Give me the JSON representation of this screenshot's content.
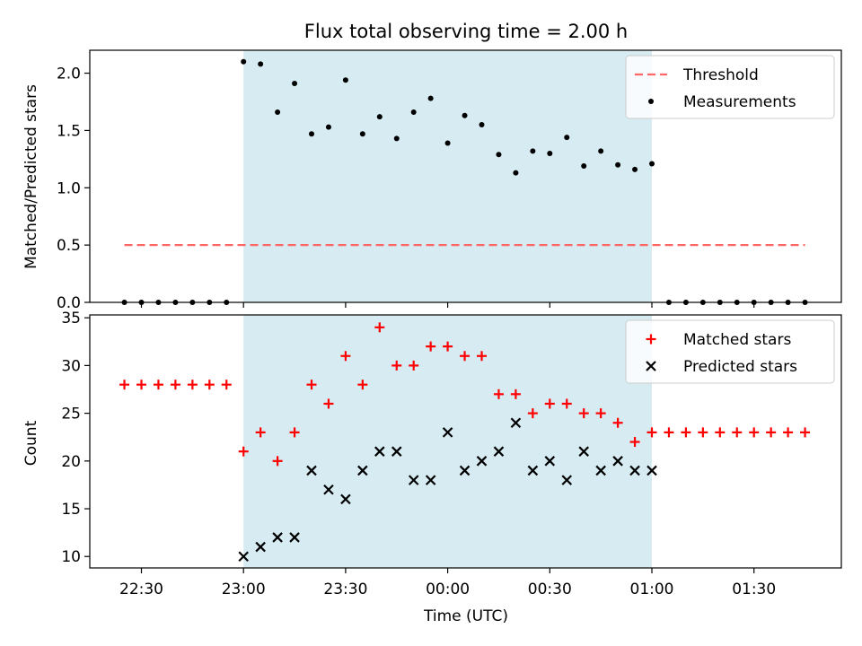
{
  "figure": {
    "title": "Flux total observing time = 2.00 h",
    "xlabel": "Time (UTC)",
    "x_ticks": [
      "22:30",
      "23:00",
      "23:30",
      "00:00",
      "00:30",
      "01:00",
      "01:30"
    ],
    "shaded_span": {
      "start": "23:00",
      "end": "01:00",
      "color": "#add8e6"
    }
  },
  "chart_data": [
    {
      "type": "scatter",
      "ylabel": "Matched/Predicted stars",
      "ylim": [
        0,
        2.2
      ],
      "y_ticks": [
        "0.0",
        "0.5",
        "1.0",
        "1.5",
        "2.0"
      ],
      "legend_position": "top-right",
      "grid": false,
      "threshold": {
        "name": "Threshold",
        "value": 0.5,
        "x_start": "22:25",
        "x_end": "01:45",
        "color": "#ff6666"
      },
      "series": [
        {
          "name": "Measurements",
          "color": "#000000",
          "marker": "dot",
          "points": [
            [
              "22:25",
              0
            ],
            [
              "22:30",
              0
            ],
            [
              "22:35",
              0
            ],
            [
              "22:40",
              0
            ],
            [
              "22:45",
              0
            ],
            [
              "22:50",
              0
            ],
            [
              "22:55",
              0
            ],
            [
              "23:00",
              2.1
            ],
            [
              "23:05",
              2.08
            ],
            [
              "23:10",
              1.66
            ],
            [
              "23:15",
              1.91
            ],
            [
              "23:20",
              1.47
            ],
            [
              "23:25",
              1.53
            ],
            [
              "23:30",
              1.94
            ],
            [
              "23:35",
              1.47
            ],
            [
              "23:40",
              1.62
            ],
            [
              "23:45",
              1.43
            ],
            [
              "23:50",
              1.66
            ],
            [
              "23:55",
              1.78
            ],
            [
              "00:00",
              1.39
            ],
            [
              "00:05",
              1.63
            ],
            [
              "00:10",
              1.55
            ],
            [
              "00:15",
              1.29
            ],
            [
              "00:20",
              1.13
            ],
            [
              "00:25",
              1.32
            ],
            [
              "00:30",
              1.3
            ],
            [
              "00:35",
              1.44
            ],
            [
              "00:40",
              1.19
            ],
            [
              "00:45",
              1.32
            ],
            [
              "00:50",
              1.2
            ],
            [
              "00:55",
              1.16
            ],
            [
              "01:00",
              1.21
            ],
            [
              "01:05",
              0
            ],
            [
              "01:10",
              0
            ],
            [
              "01:15",
              0
            ],
            [
              "01:20",
              0
            ],
            [
              "01:25",
              0
            ],
            [
              "01:30",
              0
            ],
            [
              "01:35",
              0
            ],
            [
              "01:40",
              0
            ],
            [
              "01:45",
              0
            ]
          ]
        }
      ]
    },
    {
      "type": "scatter",
      "ylabel": "Count",
      "ylim": [
        8.8,
        35.3
      ],
      "y_ticks": [
        "10",
        "15",
        "20",
        "25",
        "30",
        "35"
      ],
      "legend_position": "top-right",
      "grid": false,
      "series": [
        {
          "name": "Matched stars",
          "color": "#ff0000",
          "marker": "plus",
          "points": [
            [
              "22:25",
              28
            ],
            [
              "22:30",
              28
            ],
            [
              "22:35",
              28
            ],
            [
              "22:40",
              28
            ],
            [
              "22:45",
              28
            ],
            [
              "22:50",
              28
            ],
            [
              "22:55",
              28
            ],
            [
              "23:00",
              21
            ],
            [
              "23:05",
              23
            ],
            [
              "23:10",
              20
            ],
            [
              "23:15",
              23
            ],
            [
              "23:20",
              28
            ],
            [
              "23:25",
              26
            ],
            [
              "23:30",
              31
            ],
            [
              "23:35",
              28
            ],
            [
              "23:40",
              34
            ],
            [
              "23:45",
              30
            ],
            [
              "23:50",
              30
            ],
            [
              "23:55",
              32
            ],
            [
              "00:00",
              32
            ],
            [
              "00:05",
              31
            ],
            [
              "00:10",
              31
            ],
            [
              "00:15",
              27
            ],
            [
              "00:20",
              27
            ],
            [
              "00:25",
              25
            ],
            [
              "00:30",
              26
            ],
            [
              "00:35",
              26
            ],
            [
              "00:40",
              25
            ],
            [
              "00:45",
              25
            ],
            [
              "00:50",
              24
            ],
            [
              "00:55",
              22
            ],
            [
              "01:00",
              23
            ],
            [
              "01:05",
              23
            ],
            [
              "01:10",
              23
            ],
            [
              "01:15",
              23
            ],
            [
              "01:20",
              23
            ],
            [
              "01:25",
              23
            ],
            [
              "01:30",
              23
            ],
            [
              "01:35",
              23
            ],
            [
              "01:40",
              23
            ],
            [
              "01:45",
              23
            ]
          ]
        },
        {
          "name": "Predicted stars",
          "color": "#000000",
          "marker": "cross",
          "points": [
            [
              "23:00",
              10
            ],
            [
              "23:05",
              11
            ],
            [
              "23:10",
              12
            ],
            [
              "23:15",
              12
            ],
            [
              "23:20",
              19
            ],
            [
              "23:25",
              17
            ],
            [
              "23:30",
              16
            ],
            [
              "23:35",
              19
            ],
            [
              "23:40",
              21
            ],
            [
              "23:45",
              21
            ],
            [
              "23:50",
              18
            ],
            [
              "23:55",
              18
            ],
            [
              "00:00",
              23
            ],
            [
              "00:05",
              19
            ],
            [
              "00:10",
              20
            ],
            [
              "00:15",
              21
            ],
            [
              "00:20",
              24
            ],
            [
              "00:25",
              19
            ],
            [
              "00:30",
              20
            ],
            [
              "00:35",
              18
            ],
            [
              "00:40",
              21
            ],
            [
              "00:45",
              19
            ],
            [
              "00:50",
              20
            ],
            [
              "00:55",
              19
            ],
            [
              "01:00",
              19
            ]
          ]
        }
      ]
    }
  ]
}
